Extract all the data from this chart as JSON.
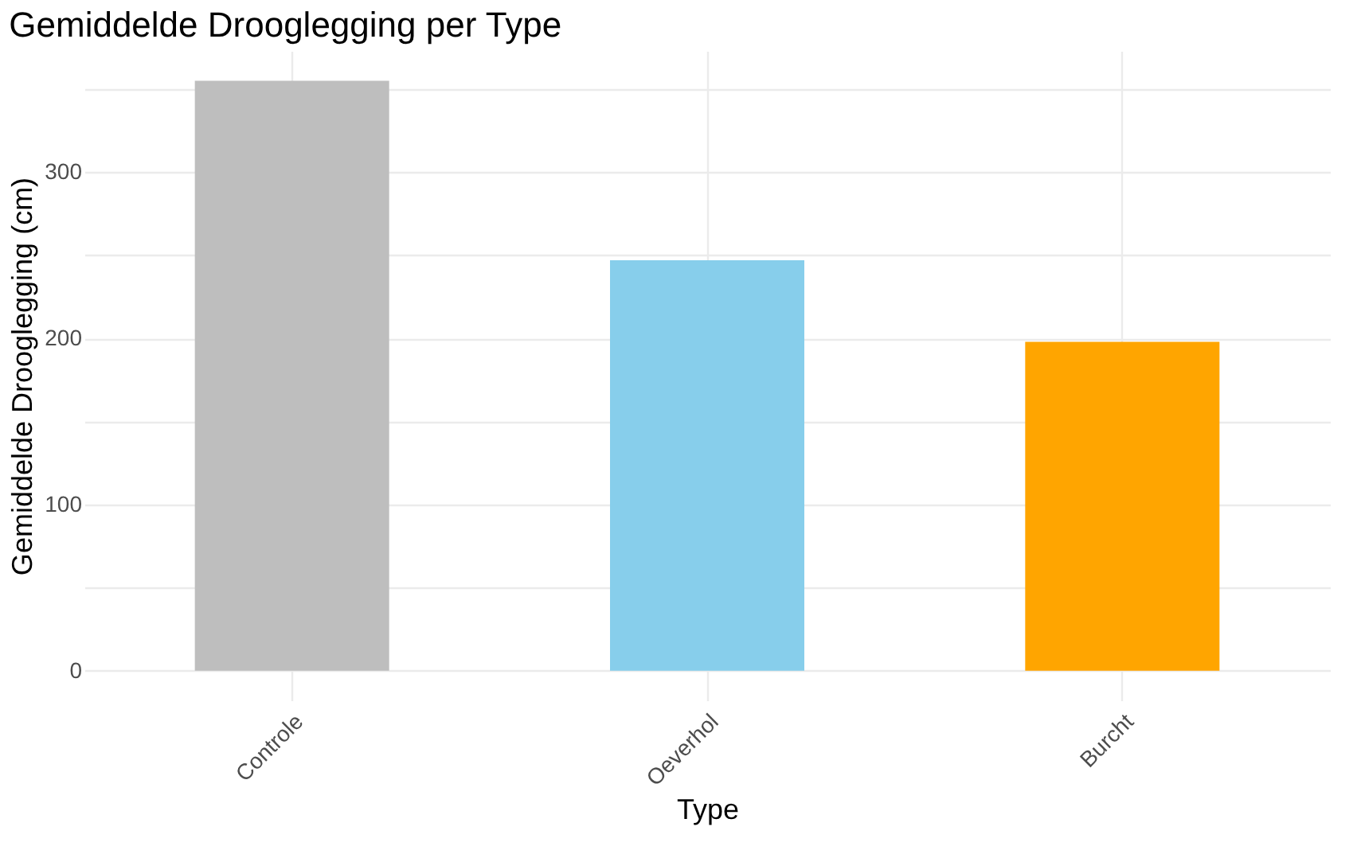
{
  "chart_data": {
    "type": "bar",
    "title": "Gemiddelde Drooglegging per Type",
    "xlabel": "Type",
    "ylabel": "Gemiddelde Drooglegging (cm)",
    "categories": [
      "Controle",
      "Oeverhol",
      "Burcht"
    ],
    "values": [
      355,
      247,
      198
    ],
    "colors": [
      "#bebebe",
      "#87ceeb",
      "#ffa500"
    ],
    "ylim": [
      -17.8,
      373
    ],
    "yticks": [
      0,
      {
        "value": 50,
        "label": null
      },
      100,
      {
        "value": 150,
        "label": null
      },
      200,
      {
        "value": 250,
        "label": null
      },
      300,
      {
        "value": 350,
        "label": null
      }
    ],
    "grid": true
  }
}
